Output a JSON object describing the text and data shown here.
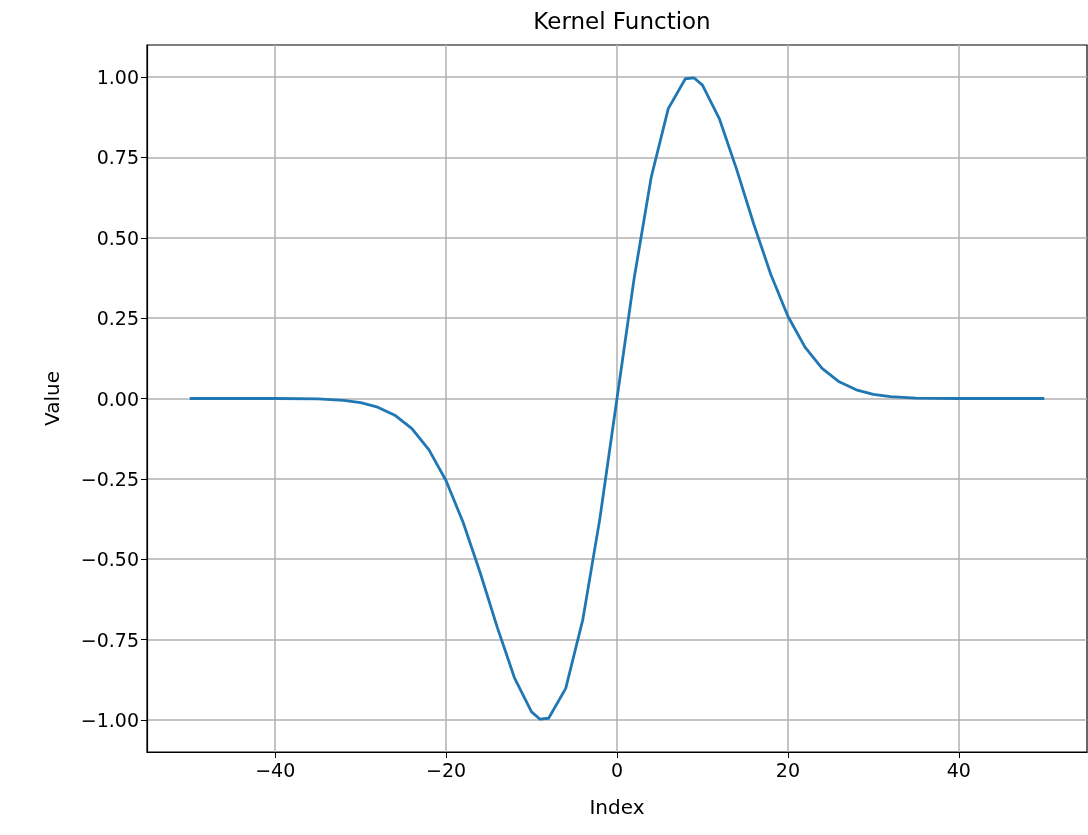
{
  "chart_data": {
    "type": "line",
    "title": "Kernel Function",
    "xlabel": "Index",
    "ylabel": "Value",
    "x": [
      -50,
      -45,
      -40,
      -35,
      -32,
      -30,
      -28,
      -26,
      -24,
      -22,
      -20,
      -18,
      -16,
      -14,
      -12,
      -10,
      -9,
      -8,
      -6,
      -4,
      -2,
      0,
      2,
      4,
      6,
      8,
      9,
      10,
      12,
      14,
      16,
      18,
      20,
      22,
      24,
      26,
      28,
      30,
      32,
      35,
      40,
      45,
      50
    ],
    "series": [
      {
        "color": "#1f77b4",
        "values": [
          0,
          0,
          0,
          -0.001,
          -0.006,
          -0.013,
          -0.027,
          -0.052,
          -0.094,
          -0.16,
          -0.256,
          -0.386,
          -0.543,
          -0.713,
          -0.869,
          -0.975,
          -0.998,
          -0.995,
          -0.902,
          -0.688,
          -0.373,
          0,
          0.373,
          0.688,
          0.902,
          0.995,
          0.998,
          0.975,
          0.869,
          0.713,
          0.543,
          0.386,
          0.256,
          0.16,
          0.094,
          0.052,
          0.027,
          0.013,
          0.006,
          0.001,
          0,
          0,
          0
        ]
      }
    ],
    "xlim": [
      -55,
      55
    ],
    "xticks": [
      {
        "value": -40,
        "label": "−40"
      },
      {
        "value": -20,
        "label": "−20"
      },
      0,
      20,
      40
    ],
    "ylim": [
      -1.1,
      1.1
    ],
    "yticks": [
      {
        "value": -1,
        "label": "−1.00"
      },
      {
        "value": -0.75,
        "label": "−0.75"
      },
      {
        "value": -0.5,
        "label": "−0.50"
      },
      {
        "value": -0.25,
        "label": "−0.25"
      },
      {
        "value": 0,
        "label": "0.00"
      },
      {
        "value": 0.25,
        "label": "0.25"
      },
      {
        "value": 0.5,
        "label": "0.50"
      },
      {
        "value": 0.75,
        "label": "0.75"
      },
      {
        "value": 1,
        "label": "1.00"
      }
    ],
    "grid": true,
    "marker": "none",
    "line_style": "solid"
  }
}
